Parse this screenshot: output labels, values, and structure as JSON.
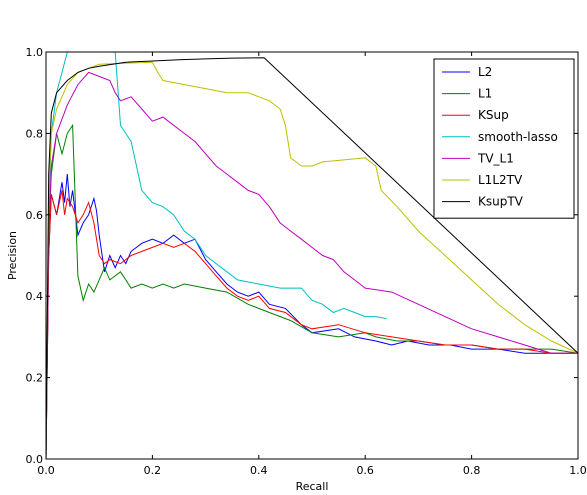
{
  "chart_data": {
    "type": "line",
    "xlabel": "Recall",
    "ylabel": "Precision",
    "xlim": [
      0.0,
      1.0
    ],
    "ylim": [
      0.0,
      1.0
    ],
    "xticks": [
      "0.0",
      "0.2",
      "0.4",
      "0.6",
      "0.8",
      "1.0"
    ],
    "yticks": [
      "0.0",
      "0.2",
      "0.4",
      "0.6",
      "0.8",
      "1.0"
    ],
    "grid": false,
    "legend_position": "top-right",
    "series": [
      {
        "name": "L2",
        "color": "#0000ff",
        "points": [
          [
            0.0,
            0.0
          ],
          [
            0.005,
            0.5
          ],
          [
            0.01,
            0.65
          ],
          [
            0.02,
            0.6
          ],
          [
            0.03,
            0.68
          ],
          [
            0.035,
            0.63
          ],
          [
            0.04,
            0.7
          ],
          [
            0.045,
            0.62
          ],
          [
            0.05,
            0.66
          ],
          [
            0.06,
            0.55
          ],
          [
            0.07,
            0.58
          ],
          [
            0.08,
            0.6
          ],
          [
            0.09,
            0.64
          ],
          [
            0.095,
            0.61
          ],
          [
            0.1,
            0.55
          ],
          [
            0.11,
            0.46
          ],
          [
            0.12,
            0.5
          ],
          [
            0.13,
            0.47
          ],
          [
            0.14,
            0.5
          ],
          [
            0.15,
            0.48
          ],
          [
            0.16,
            0.51
          ],
          [
            0.18,
            0.53
          ],
          [
            0.2,
            0.54
          ],
          [
            0.22,
            0.53
          ],
          [
            0.24,
            0.55
          ],
          [
            0.26,
            0.53
          ],
          [
            0.28,
            0.54
          ],
          [
            0.3,
            0.49
          ],
          [
            0.32,
            0.46
          ],
          [
            0.34,
            0.43
          ],
          [
            0.36,
            0.41
          ],
          [
            0.38,
            0.4
          ],
          [
            0.4,
            0.41
          ],
          [
            0.42,
            0.38
          ],
          [
            0.45,
            0.37
          ],
          [
            0.48,
            0.33
          ],
          [
            0.5,
            0.31
          ],
          [
            0.55,
            0.32
          ],
          [
            0.58,
            0.3
          ],
          [
            0.62,
            0.29
          ],
          [
            0.65,
            0.28
          ],
          [
            0.68,
            0.29
          ],
          [
            0.72,
            0.28
          ],
          [
            0.76,
            0.28
          ],
          [
            0.8,
            0.27
          ],
          [
            0.85,
            0.27
          ],
          [
            0.9,
            0.26
          ],
          [
            0.95,
            0.26
          ],
          [
            1.0,
            0.26
          ]
        ]
      },
      {
        "name": "L1",
        "color": "#008000",
        "points": [
          [
            0.0,
            0.0
          ],
          [
            0.005,
            0.55
          ],
          [
            0.01,
            0.7
          ],
          [
            0.02,
            0.8
          ],
          [
            0.03,
            0.75
          ],
          [
            0.04,
            0.8
          ],
          [
            0.05,
            0.82
          ],
          [
            0.06,
            0.45
          ],
          [
            0.07,
            0.39
          ],
          [
            0.08,
            0.43
          ],
          [
            0.09,
            0.41
          ],
          [
            0.1,
            0.44
          ],
          [
            0.11,
            0.47
          ],
          [
            0.12,
            0.44
          ],
          [
            0.14,
            0.46
          ],
          [
            0.16,
            0.42
          ],
          [
            0.18,
            0.43
          ],
          [
            0.2,
            0.42
          ],
          [
            0.22,
            0.43
          ],
          [
            0.24,
            0.42
          ],
          [
            0.26,
            0.43
          ],
          [
            0.3,
            0.42
          ],
          [
            0.34,
            0.41
          ],
          [
            0.38,
            0.38
          ],
          [
            0.42,
            0.36
          ],
          [
            0.46,
            0.34
          ],
          [
            0.5,
            0.31
          ],
          [
            0.55,
            0.3
          ],
          [
            0.6,
            0.31
          ],
          [
            0.62,
            0.3
          ],
          [
            0.66,
            0.29
          ],
          [
            0.7,
            0.29
          ],
          [
            0.75,
            0.28
          ],
          [
            0.8,
            0.28
          ],
          [
            0.85,
            0.27
          ],
          [
            0.9,
            0.27
          ],
          [
            0.95,
            0.27
          ],
          [
            1.0,
            0.26
          ]
        ]
      },
      {
        "name": "KSup",
        "color": "#ff0000",
        "points": [
          [
            0.0,
            0.0
          ],
          [
            0.005,
            0.5
          ],
          [
            0.01,
            0.65
          ],
          [
            0.02,
            0.6
          ],
          [
            0.03,
            0.66
          ],
          [
            0.035,
            0.6
          ],
          [
            0.04,
            0.64
          ],
          [
            0.05,
            0.62
          ],
          [
            0.06,
            0.58
          ],
          [
            0.07,
            0.6
          ],
          [
            0.08,
            0.63
          ],
          [
            0.09,
            0.58
          ],
          [
            0.1,
            0.5
          ],
          [
            0.11,
            0.48
          ],
          [
            0.12,
            0.49
          ],
          [
            0.14,
            0.48
          ],
          [
            0.16,
            0.5
          ],
          [
            0.18,
            0.51
          ],
          [
            0.2,
            0.52
          ],
          [
            0.22,
            0.53
          ],
          [
            0.24,
            0.52
          ],
          [
            0.26,
            0.53
          ],
          [
            0.28,
            0.51
          ],
          [
            0.3,
            0.48
          ],
          [
            0.32,
            0.45
          ],
          [
            0.34,
            0.42
          ],
          [
            0.36,
            0.4
          ],
          [
            0.38,
            0.39
          ],
          [
            0.4,
            0.4
          ],
          [
            0.42,
            0.37
          ],
          [
            0.45,
            0.36
          ],
          [
            0.48,
            0.33
          ],
          [
            0.5,
            0.32
          ],
          [
            0.55,
            0.33
          ],
          [
            0.6,
            0.31
          ],
          [
            0.65,
            0.3
          ],
          [
            0.7,
            0.29
          ],
          [
            0.75,
            0.28
          ],
          [
            0.8,
            0.28
          ],
          [
            0.85,
            0.27
          ],
          [
            0.9,
            0.27
          ],
          [
            0.95,
            0.26
          ],
          [
            1.0,
            0.26
          ]
        ]
      },
      {
        "name": "smooth-lasso",
        "color": "#00bfbf",
        "points": [
          [
            0.0,
            0.0
          ],
          [
            0.005,
            0.6
          ],
          [
            0.01,
            0.8
          ],
          [
            0.02,
            0.9
          ],
          [
            0.03,
            0.95
          ],
          [
            0.04,
            1.0
          ],
          [
            0.05,
            1.0
          ],
          [
            0.055,
            1.0
          ],
          [
            0.13,
            1.0
          ],
          [
            0.14,
            0.82
          ],
          [
            0.15,
            0.8
          ],
          [
            0.16,
            0.78
          ],
          [
            0.18,
            0.66
          ],
          [
            0.2,
            0.63
          ],
          [
            0.22,
            0.62
          ],
          [
            0.24,
            0.6
          ],
          [
            0.26,
            0.56
          ],
          [
            0.28,
            0.54
          ],
          [
            0.3,
            0.5
          ],
          [
            0.32,
            0.48
          ],
          [
            0.34,
            0.46
          ],
          [
            0.36,
            0.44
          ],
          [
            0.4,
            0.43
          ],
          [
            0.44,
            0.42
          ],
          [
            0.48,
            0.42
          ],
          [
            0.5,
            0.39
          ],
          [
            0.52,
            0.38
          ],
          [
            0.54,
            0.36
          ],
          [
            0.56,
            0.37
          ],
          [
            0.58,
            0.36
          ],
          [
            0.6,
            0.35
          ],
          [
            0.62,
            0.35
          ],
          [
            0.64,
            0.345
          ]
        ]
      },
      {
        "name": "TV_L1",
        "color": "#bf00bf",
        "points": [
          [
            0.0,
            0.0
          ],
          [
            0.005,
            0.55
          ],
          [
            0.01,
            0.72
          ],
          [
            0.02,
            0.8
          ],
          [
            0.04,
            0.87
          ],
          [
            0.06,
            0.92
          ],
          [
            0.08,
            0.95
          ],
          [
            0.1,
            0.94
          ],
          [
            0.12,
            0.93
          ],
          [
            0.13,
            0.9
          ],
          [
            0.14,
            0.88
          ],
          [
            0.16,
            0.89
          ],
          [
            0.18,
            0.86
          ],
          [
            0.2,
            0.83
          ],
          [
            0.22,
            0.84
          ],
          [
            0.24,
            0.82
          ],
          [
            0.26,
            0.8
          ],
          [
            0.28,
            0.78
          ],
          [
            0.3,
            0.75
          ],
          [
            0.32,
            0.72
          ],
          [
            0.34,
            0.7
          ],
          [
            0.36,
            0.68
          ],
          [
            0.38,
            0.66
          ],
          [
            0.4,
            0.65
          ],
          [
            0.42,
            0.62
          ],
          [
            0.44,
            0.58
          ],
          [
            0.46,
            0.56
          ],
          [
            0.48,
            0.54
          ],
          [
            0.5,
            0.52
          ],
          [
            0.52,
            0.5
          ],
          [
            0.54,
            0.49
          ],
          [
            0.56,
            0.46
          ],
          [
            0.58,
            0.44
          ],
          [
            0.6,
            0.42
          ],
          [
            0.65,
            0.41
          ],
          [
            0.7,
            0.38
          ],
          [
            0.75,
            0.35
          ],
          [
            0.8,
            0.32
          ],
          [
            0.85,
            0.3
          ],
          [
            0.9,
            0.28
          ],
          [
            0.95,
            0.26
          ],
          [
            1.0,
            0.26
          ]
        ]
      },
      {
        "name": "L1L2TV",
        "color": "#bfbf00",
        "points": [
          [
            0.0,
            0.0
          ],
          [
            0.005,
            0.65
          ],
          [
            0.01,
            0.8
          ],
          [
            0.02,
            0.86
          ],
          [
            0.04,
            0.92
          ],
          [
            0.06,
            0.95
          ],
          [
            0.08,
            0.96
          ],
          [
            0.1,
            0.97
          ],
          [
            0.2,
            0.975
          ],
          [
            0.21,
            0.95
          ],
          [
            0.22,
            0.93
          ],
          [
            0.26,
            0.92
          ],
          [
            0.3,
            0.91
          ],
          [
            0.34,
            0.9
          ],
          [
            0.38,
            0.9
          ],
          [
            0.4,
            0.89
          ],
          [
            0.42,
            0.88
          ],
          [
            0.44,
            0.86
          ],
          [
            0.45,
            0.82
          ],
          [
            0.46,
            0.74
          ],
          [
            0.47,
            0.73
          ],
          [
            0.48,
            0.72
          ],
          [
            0.5,
            0.72
          ],
          [
            0.52,
            0.73
          ],
          [
            0.56,
            0.735
          ],
          [
            0.6,
            0.74
          ],
          [
            0.62,
            0.72
          ],
          [
            0.63,
            0.66
          ],
          [
            0.66,
            0.62
          ],
          [
            0.7,
            0.56
          ],
          [
            0.75,
            0.5
          ],
          [
            0.8,
            0.44
          ],
          [
            0.85,
            0.38
          ],
          [
            0.9,
            0.33
          ],
          [
            0.95,
            0.29
          ],
          [
            1.0,
            0.26
          ]
        ]
      },
      {
        "name": "KsupTV",
        "color": "#000000",
        "points": [
          [
            0.0,
            0.0
          ],
          [
            0.005,
            0.7
          ],
          [
            0.01,
            0.85
          ],
          [
            0.02,
            0.9
          ],
          [
            0.04,
            0.93
          ],
          [
            0.06,
            0.95
          ],
          [
            0.08,
            0.96
          ],
          [
            0.1,
            0.965
          ],
          [
            0.15,
            0.975
          ],
          [
            0.2,
            0.978
          ],
          [
            0.25,
            0.981
          ],
          [
            0.3,
            0.983
          ],
          [
            0.35,
            0.985
          ],
          [
            0.41,
            0.986
          ],
          [
            1.0,
            0.26
          ]
        ]
      }
    ]
  }
}
